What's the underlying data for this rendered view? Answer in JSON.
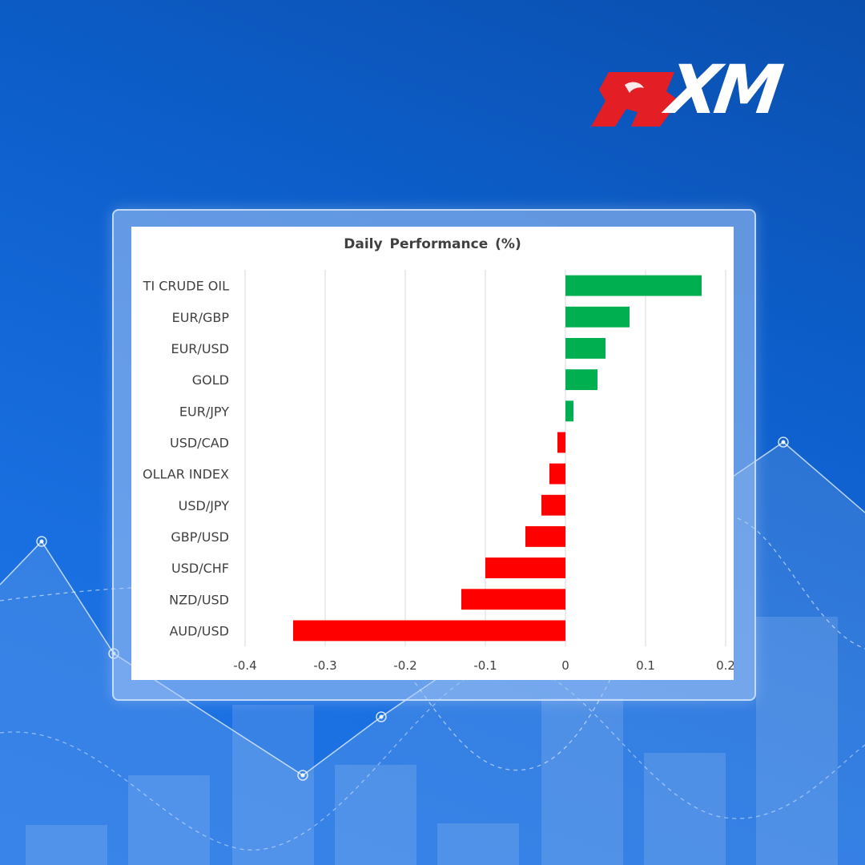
{
  "brand": {
    "logo_text": "XM",
    "accent_color": "#e31e24",
    "text_color": "#ffffff"
  },
  "chart_data": {
    "type": "bar",
    "orientation": "horizontal",
    "title": "Daily Performance (%)",
    "categories": [
      "TI CRUDE OIL",
      "EUR/GBP",
      "EUR/USD",
      "GOLD",
      "EUR/JPY",
      "USD/CAD",
      "OLLAR INDEX",
      "USD/JPY",
      "GBP/USD",
      "USD/CHF",
      "NZD/USD",
      "AUD/USD"
    ],
    "values": [
      0.17,
      0.08,
      0.05,
      0.04,
      0.01,
      -0.01,
      -0.02,
      -0.03,
      -0.05,
      -0.1,
      -0.13,
      -0.34
    ],
    "xlim": [
      -0.4,
      0.2
    ],
    "ticks": [
      "-0.4",
      "-0.3",
      "-0.2",
      "-0.1",
      "0",
      "0.1",
      "0.2"
    ],
    "tick_values": [
      -0.4,
      -0.3,
      -0.2,
      -0.1,
      0,
      0.1,
      0.2
    ],
    "positive_color": "#00b050",
    "negative_color": "#ff0000",
    "grid": true,
    "legend": "none"
  }
}
